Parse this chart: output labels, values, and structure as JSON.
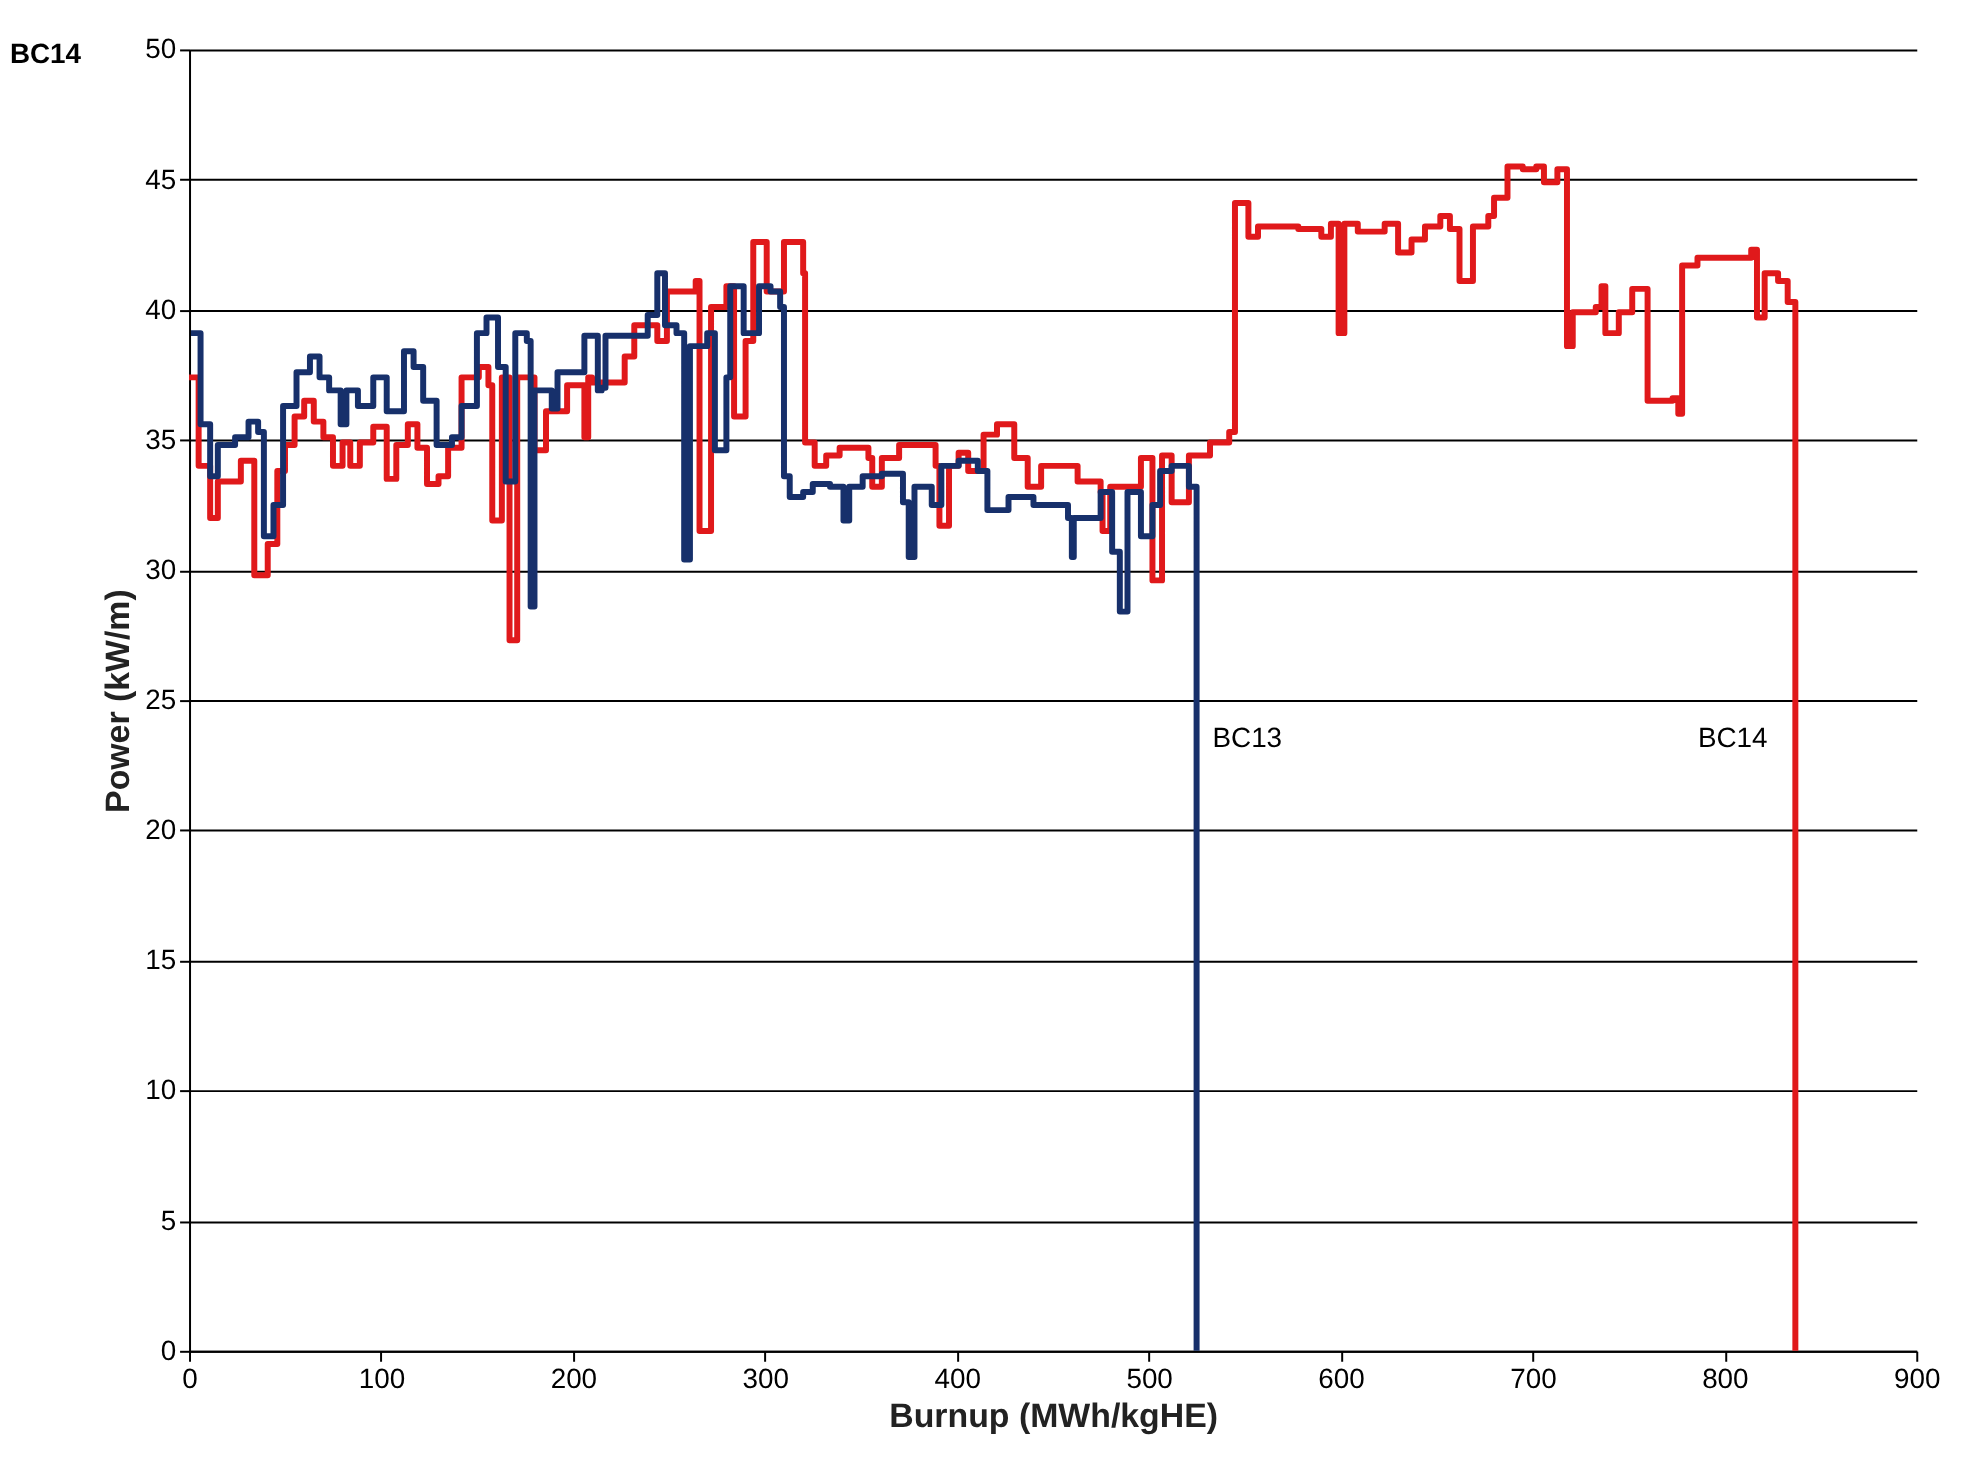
{
  "chart_data": {
    "type": "step",
    "xlabel": "Burnup (MWh/kgHE)",
    "ylabel": "Power (kW/m)",
    "xlim": [
      0,
      900
    ],
    "xticks": [
      0,
      100,
      200,
      300,
      400,
      500,
      600,
      700,
      800,
      900
    ],
    "ylim": [
      0,
      50
    ],
    "yticks": [
      0,
      5,
      10,
      15,
      20,
      25,
      30,
      35,
      40,
      45,
      50
    ],
    "grid": "y",
    "line_style": "solid",
    "marker": "none",
    "series": [
      {
        "name": "BC14",
        "color": "#e0191b",
        "x": [
          0,
          5,
          11,
          15,
          27,
          34,
          41,
          46,
          50,
          55,
          60,
          65,
          70,
          75,
          80,
          84,
          89,
          96,
          103,
          108,
          114,
          119,
          124,
          130,
          135,
          142,
          151,
          156,
          158,
          163,
          167,
          171,
          180,
          186,
          197,
          206,
          208,
          210,
          227,
          232,
          244,
          249,
          264,
          266,
          272,
          280,
          284,
          290,
          294,
          301,
          310,
          320,
          321,
          326,
          332,
          339,
          354,
          356,
          361,
          370,
          389,
          391,
          396,
          401,
          406,
          414,
          421,
          430,
          437,
          444,
          463,
          475,
          476,
          480,
          496,
          502,
          507,
          512,
          521,
          532,
          542,
          545,
          552,
          557,
          578,
          590,
          595,
          599,
          602,
          609,
          623,
          630,
          637,
          644,
          652,
          657,
          662,
          669,
          677,
          680,
          687,
          695,
          702,
          706,
          713,
          718,
          721,
          733,
          736,
          738,
          745,
          752,
          760,
          773,
          776,
          778,
          786,
          814,
          817,
          821,
          828,
          833,
          837
        ],
        "values": [
          37.4,
          34.0,
          32.0,
          33.4,
          34.2,
          29.8,
          31.0,
          33.8,
          34.8,
          35.9,
          36.5,
          35.7,
          35.1,
          34.0,
          34.9,
          34.0,
          34.9,
          35.5,
          33.5,
          34.8,
          35.6,
          34.7,
          33.3,
          33.6,
          34.7,
          37.4,
          37.8,
          37.1,
          31.9,
          37.4,
          27.3,
          37.4,
          34.6,
          36.1,
          37.1,
          35.1,
          37.4,
          37.2,
          38.2,
          39.4,
          38.8,
          40.7,
          41.1,
          31.5,
          40.1,
          40.9,
          35.9,
          38.8,
          42.6,
          40.7,
          42.6,
          41.4,
          34.9,
          34.0,
          34.4,
          34.7,
          34.3,
          33.2,
          34.3,
          34.8,
          34.0,
          31.7,
          34.0,
          34.5,
          33.8,
          35.2,
          35.6,
          34.3,
          33.2,
          34.0,
          33.4,
          33.0,
          31.5,
          33.2,
          34.3,
          29.6,
          34.4,
          32.6,
          34.4,
          34.9,
          35.3,
          44.1,
          42.8,
          43.2,
          43.1,
          42.8,
          43.3,
          39.1,
          43.3,
          43.0,
          43.3,
          42.2,
          42.7,
          43.2,
          43.6,
          43.1,
          41.1,
          43.2,
          43.6,
          44.3,
          45.5,
          45.4,
          45.5,
          44.9,
          45.4,
          38.6,
          39.9,
          40.1,
          40.9,
          39.1,
          39.9,
          40.8,
          36.5,
          36.6,
          36.0,
          41.7,
          42.0,
          42.3,
          39.7,
          41.4,
          41.1,
          40.3,
          0
        ]
      },
      {
        "name": "BC13",
        "color": "#17306b",
        "x": [
          1,
          6,
          11,
          15,
          24,
          31,
          36,
          39,
          44,
          49,
          56,
          63,
          68,
          73,
          79,
          82,
          88,
          96,
          103,
          112,
          117,
          122,
          129,
          137,
          142,
          150,
          155,
          161,
          165,
          170,
          176,
          178,
          180,
          189,
          192,
          206,
          213,
          215,
          217,
          239,
          244,
          248,
          254,
          258,
          261,
          270,
          274,
          280,
          282,
          289,
          297,
          303,
          308,
          310,
          313,
          320,
          325,
          334,
          341,
          344,
          351,
          361,
          372,
          375,
          378,
          387,
          392,
          401,
          411,
          416,
          427,
          440,
          458,
          460,
          461,
          475,
          481,
          485,
          489,
          496,
          502,
          506,
          512,
          521,
          525
        ],
        "values": [
          39.1,
          35.6,
          33.6,
          34.8,
          35.1,
          35.7,
          35.3,
          31.3,
          32.5,
          36.3,
          37.6,
          38.2,
          37.4,
          36.9,
          35.6,
          36.9,
          36.3,
          37.4,
          36.1,
          38.4,
          37.8,
          36.5,
          34.8,
          35.1,
          36.3,
          39.1,
          39.7,
          37.8,
          33.4,
          39.1,
          38.8,
          28.6,
          36.9,
          36.2,
          37.6,
          39.0,
          36.9,
          37.0,
          39.0,
          39.8,
          41.4,
          39.4,
          39.1,
          30.4,
          38.6,
          39.1,
          34.6,
          37.4,
          40.9,
          39.1,
          40.9,
          40.7,
          40.1,
          33.6,
          32.8,
          33.0,
          33.3,
          33.2,
          31.9,
          33.2,
          33.6,
          33.7,
          32.6,
          30.5,
          33.2,
          32.5,
          34.0,
          34.2,
          33.8,
          32.3,
          32.8,
          32.5,
          32.0,
          30.5,
          32.0,
          33.0,
          30.7,
          28.4,
          33.0,
          31.3,
          32.5,
          33.8,
          34.0,
          33.2,
          0
        ]
      }
    ],
    "annotations": [
      "BC14"
    ]
  }
}
